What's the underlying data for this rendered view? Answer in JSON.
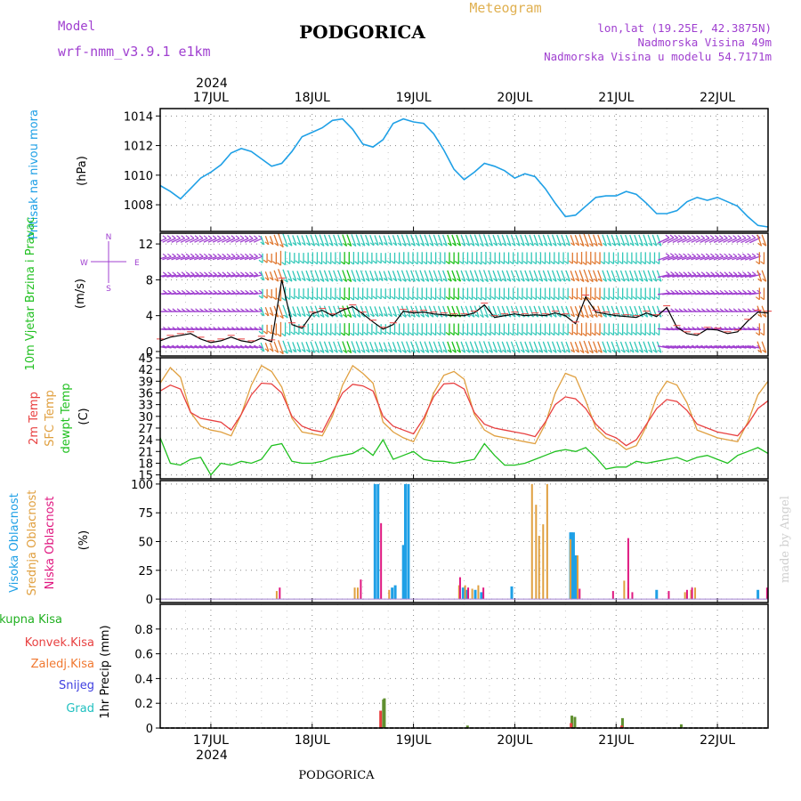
{
  "header": {
    "model_label": "Model",
    "model_name": "wrf-nmm_v3.9.1 e1km",
    "station": "PODGORICA",
    "meteogram": "Meteogram",
    "coords": "lon,lat (19.25E, 42.3875N)",
    "elevation": "Nadmorska Visina 49m",
    "model_elevation": "Nadmorska Visina u modelu 54.7171m",
    "year": "2024",
    "footer_station": "PODGORICA",
    "watermark": "made by Angel"
  },
  "colors": {
    "pressure": "#1fa0e6",
    "wind_green": "#18c018",
    "wind_purple": "#a040d0",
    "temp2m": "#e84040",
    "sfc": "#e0a040",
    "dew": "#20c020",
    "high_cloud": "#1fa0e6",
    "mid_cloud": "#e0a040",
    "low_cloud": "#e01880",
    "total_precip": "#20b020",
    "conv_precip": "#e84040",
    "frozen": "#f07830",
    "snow": "#4040e0",
    "hail": "#20c0c0",
    "wind_barbs": "#30c8b8"
  },
  "chart_data": [
    {
      "type": "line",
      "panel": "pressure",
      "ylabel": "Pritisak na nivou mora",
      "unit": "(hPa)",
      "ylim": [
        1006.2,
        1014.5
      ],
      "yticks": [
        1008,
        1010,
        1012,
        1014
      ],
      "x_days": [
        16.5,
        16.6,
        16.7,
        16.8,
        16.9,
        17.0,
        17.1,
        17.2,
        17.3,
        17.4,
        17.5,
        17.6,
        17.7,
        17.8,
        17.9,
        18.0,
        18.1,
        18.2,
        18.3,
        18.4,
        18.5,
        18.6,
        18.7,
        18.8,
        18.9,
        19.0,
        19.1,
        19.2,
        19.3,
        19.4,
        19.5,
        19.6,
        19.7,
        19.8,
        19.9,
        20.0,
        20.1,
        20.2,
        20.3,
        20.4,
        20.5,
        20.6,
        20.7,
        20.8,
        20.9,
        21.0,
        21.1,
        21.2,
        21.3,
        21.4,
        21.5,
        21.6,
        21.7,
        21.8,
        21.9,
        22.0,
        22.1,
        22.2,
        22.3,
        22.4,
        22.5
      ],
      "values": [
        1009.3,
        1008.9,
        1008.4,
        1009.1,
        1009.8,
        1010.2,
        1010.7,
        1011.5,
        1011.8,
        1011.6,
        1011.1,
        1010.6,
        1010.8,
        1011.6,
        1012.6,
        1012.9,
        1013.2,
        1013.7,
        1013.8,
        1013.1,
        1012.1,
        1011.9,
        1012.4,
        1013.5,
        1013.8,
        1013.6,
        1013.5,
        1012.8,
        1011.7,
        1010.4,
        1009.7,
        1010.2,
        1010.8,
        1010.6,
        1010.3,
        1009.8,
        1010.1,
        1009.9,
        1009.1,
        1008.1,
        1007.2,
        1007.3,
        1007.9,
        1008.5,
        1008.6,
        1008.6,
        1008.9,
        1008.7,
        1008.1,
        1007.4,
        1007.4,
        1007.6,
        1008.2,
        1008.5,
        1008.3,
        1008.5,
        1008.2,
        1007.9,
        1007.2,
        1006.6,
        1006.5
      ]
    },
    {
      "type": "line",
      "panel": "wind",
      "ylabel": "10m Vjetar Brzina i Pravac",
      "unit": "(m/s)",
      "compass": [
        "N",
        "S",
        "W",
        "E"
      ],
      "ylim": [
        -0.5,
        13.2
      ],
      "yticks": [
        0,
        4,
        8,
        12
      ],
      "x_days": [
        16.5,
        16.6,
        16.7,
        16.8,
        16.9,
        17.0,
        17.1,
        17.2,
        17.3,
        17.4,
        17.5,
        17.6,
        17.7,
        17.8,
        17.9,
        18.0,
        18.1,
        18.2,
        18.3,
        18.4,
        18.5,
        18.6,
        18.7,
        18.8,
        18.9,
        19.0,
        19.1,
        19.2,
        19.3,
        19.4,
        19.5,
        19.6,
        19.7,
        19.8,
        19.9,
        20.0,
        20.1,
        20.2,
        20.3,
        20.4,
        20.5,
        20.6,
        20.7,
        20.8,
        20.9,
        21.0,
        21.1,
        21.2,
        21.3,
        21.4,
        21.5,
        21.6,
        21.7,
        21.8,
        21.9,
        22.0,
        22.1,
        22.2,
        22.3,
        22.4,
        22.5
      ],
      "speed": [
        1.2,
        1.6,
        1.8,
        2.0,
        1.4,
        1.0,
        1.2,
        1.6,
        1.2,
        1.0,
        1.5,
        1.1,
        8.0,
        3.0,
        2.6,
        4.2,
        4.6,
        4.0,
        4.6,
        5.0,
        4.2,
        3.3,
        2.5,
        3.0,
        4.5,
        4.3,
        4.4,
        4.2,
        4.1,
        4.0,
        4.0,
        4.3,
        5.2,
        3.8,
        4.0,
        4.2,
        4.0,
        4.1,
        4.0,
        4.3,
        4.0,
        3.1,
        6.1,
        4.4,
        4.2,
        4.0,
        3.9,
        3.8,
        4.3,
        3.9,
        4.9,
        2.7,
        2.0,
        1.8,
        2.5,
        2.4,
        2.0,
        2.2,
        3.4,
        4.4,
        4.3
      ]
    },
    {
      "type": "line",
      "panel": "temperature",
      "ylabel": "2m Temp SFC Temp dewpt Temp",
      "unit": "(C)",
      "ylim": [
        14,
        45
      ],
      "yticks": [
        15,
        18,
        21,
        24,
        27,
        30,
        33,
        36,
        39,
        42,
        45
      ],
      "x_days": [
        16.5,
        16.6,
        16.7,
        16.8,
        16.9,
        17.0,
        17.1,
        17.2,
        17.3,
        17.4,
        17.5,
        17.6,
        17.7,
        17.8,
        17.9,
        18.0,
        18.1,
        18.2,
        18.3,
        18.4,
        18.5,
        18.6,
        18.7,
        18.8,
        18.9,
        19.0,
        19.1,
        19.2,
        19.3,
        19.4,
        19.5,
        19.6,
        19.7,
        19.8,
        19.9,
        20.0,
        20.1,
        20.2,
        20.3,
        20.4,
        20.5,
        20.6,
        20.7,
        20.8,
        20.9,
        21.0,
        21.1,
        21.2,
        21.3,
        21.4,
        21.5,
        21.6,
        21.7,
        21.8,
        21.9,
        22.0,
        22.1,
        22.2,
        22.3,
        22.4,
        22.5
      ],
      "series": [
        {
          "name": "2m Temp",
          "values": [
            36.5,
            38.0,
            37.0,
            31.0,
            29.5,
            29.0,
            28.5,
            26.5,
            30.5,
            35.5,
            38.5,
            38.3,
            36.0,
            30.0,
            27.5,
            26.5,
            26.0,
            31.0,
            36.0,
            38.2,
            37.8,
            36.5,
            30.0,
            27.5,
            26.5,
            25.5,
            29.5,
            35.0,
            38.3,
            38.5,
            37.0,
            31.0,
            28.0,
            27.0,
            26.5,
            26.0,
            25.5,
            24.8,
            28.5,
            33.0,
            35.0,
            34.5,
            32.0,
            28.0,
            25.5,
            24.5,
            22.5,
            24.0,
            28.0,
            32.0,
            34.3,
            33.8,
            31.5,
            28.0,
            27.0,
            26.0,
            25.5,
            25.0,
            28.0,
            32.0,
            34.0
          ]
        },
        {
          "name": "SFC Temp",
          "values": [
            38.5,
            42.5,
            40.0,
            31.0,
            27.5,
            26.5,
            26.0,
            25.0,
            30.5,
            38.0,
            43.0,
            41.5,
            37.5,
            29.5,
            26.0,
            25.5,
            25.0,
            30.0,
            38.0,
            43.0,
            41.0,
            38.5,
            28.5,
            26.0,
            24.5,
            23.5,
            28.5,
            36.0,
            40.5,
            41.5,
            39.5,
            30.5,
            26.5,
            25.0,
            24.5,
            24.0,
            23.5,
            23.0,
            28.0,
            36.0,
            41.0,
            40.0,
            34.0,
            27.0,
            24.5,
            23.5,
            21.5,
            22.5,
            27.5,
            35.0,
            39.0,
            38.0,
            33.5,
            26.5,
            25.5,
            24.5,
            24.0,
            23.5,
            28.5,
            35.5,
            39.0
          ]
        },
        {
          "name": "dewpt Temp",
          "values": [
            24.5,
            18.0,
            17.5,
            19.0,
            19.5,
            15.0,
            18.0,
            17.5,
            18.5,
            18.0,
            19.0,
            22.5,
            23.0,
            18.5,
            18.0,
            18.0,
            18.5,
            19.5,
            20.0,
            20.5,
            22.0,
            20.0,
            24.0,
            19.0,
            20.0,
            21.0,
            19.0,
            18.5,
            18.5,
            18.0,
            18.5,
            19.0,
            23.0,
            20.0,
            17.5,
            17.5,
            18.0,
            19.0,
            20.0,
            21.0,
            21.5,
            21.0,
            22.0,
            19.5,
            16.5,
            17.0,
            17.0,
            18.5,
            18.0,
            18.5,
            19.0,
            19.5,
            18.5,
            19.5,
            20.0,
            19.0,
            18.0,
            20.0,
            21.0,
            22.0,
            20.5
          ]
        }
      ]
    },
    {
      "type": "bar",
      "panel": "clouds",
      "ylabel": "Visoka Oblacnost Srednja Oblacnost Niska Oblacnost",
      "unit": "(%)",
      "ylim": [
        -3,
        103
      ],
      "yticks": [
        0,
        25,
        50,
        75,
        100
      ],
      "series": [
        {
          "name": "Visoka Oblacnost",
          "points": [
            [
              18.62,
              100
            ],
            [
              18.65,
              100
            ],
            [
              18.79,
              10
            ],
            [
              18.82,
              12
            ],
            [
              18.9,
              47
            ],
            [
              18.92,
              100
            ],
            [
              18.95,
              100
            ],
            [
              19.49,
              10
            ],
            [
              19.53,
              8
            ],
            [
              19.61,
              8
            ],
            [
              19.67,
              6
            ],
            [
              19.97,
              11
            ],
            [
              20.55,
              58
            ],
            [
              20.56,
              58
            ],
            [
              20.58,
              58
            ],
            [
              20.6,
              38
            ],
            [
              21.4,
              8
            ],
            [
              22.4,
              8
            ]
          ]
        },
        {
          "name": "Srednja Oblacnost",
          "points": [
            [
              17.65,
              7
            ],
            [
              18.42,
              10
            ],
            [
              18.45,
              10
            ],
            [
              18.76,
              8
            ],
            [
              19.45,
              12
            ],
            [
              19.51,
              12
            ],
            [
              19.58,
              9
            ],
            [
              19.64,
              12
            ],
            [
              20.17,
              100
            ],
            [
              20.21,
              82
            ],
            [
              20.24,
              55
            ],
            [
              20.28,
              65
            ],
            [
              20.32,
              100
            ],
            [
              20.55,
              52
            ],
            [
              20.62,
              38
            ],
            [
              21.08,
              16
            ],
            [
              21.12,
              10
            ],
            [
              21.68,
              6
            ],
            [
              21.74,
              8
            ],
            [
              21.78,
              10
            ]
          ]
        },
        {
          "name": "Niska Oblacnost",
          "points": [
            [
              17.68,
              10
            ],
            [
              18.48,
              17
            ],
            [
              18.68,
              66
            ],
            [
              19.46,
              19
            ],
            [
              19.54,
              10
            ],
            [
              19.69,
              10
            ],
            [
              20.64,
              9
            ],
            [
              20.97,
              7
            ],
            [
              21.12,
              53
            ],
            [
              21.16,
              6
            ],
            [
              21.52,
              7
            ],
            [
              21.7,
              8
            ],
            [
              21.75,
              10
            ],
            [
              22.49,
              10
            ]
          ]
        }
      ]
    },
    {
      "type": "bar",
      "panel": "precipitation",
      "ylabel": "1hr Precip (mm)",
      "legend": [
        "Ukupna Kisa",
        "Konvek.Kisa",
        "Zaledj.Kisa",
        "Snijeg",
        "Grad"
      ],
      "ylim": [
        0,
        1.0
      ],
      "yticks": [
        0,
        0.2,
        0.4,
        0.6,
        0.8
      ],
      "series": [
        {
          "name": "Ukupna Kisa",
          "points": [
            [
              18.69,
              0.23
            ],
            [
              18.7,
              0.24
            ],
            [
              19.52,
              0.02
            ],
            [
              20.55,
              0.1
            ],
            [
              20.58,
              0.09
            ],
            [
              21.05,
              0.08
            ],
            [
              21.63,
              0.03
            ]
          ]
        },
        {
          "name": "Konvek.Kisa",
          "points": [
            [
              18.68,
              0.14
            ],
            [
              20.56,
              0.04
            ],
            [
              21.06,
              0.02
            ]
          ]
        }
      ]
    }
  ],
  "x_axis": {
    "days": [
      {
        "label": "17JUL",
        "x": 17
      },
      {
        "label": "18JUL",
        "x": 18
      },
      {
        "label": "19JUL",
        "x": 19
      },
      {
        "label": "20JUL",
        "x": 20
      },
      {
        "label": "21JUL",
        "x": 21
      },
      {
        "label": "22JUL",
        "x": 22
      }
    ],
    "xlim": [
      16.5,
      22.5
    ]
  }
}
